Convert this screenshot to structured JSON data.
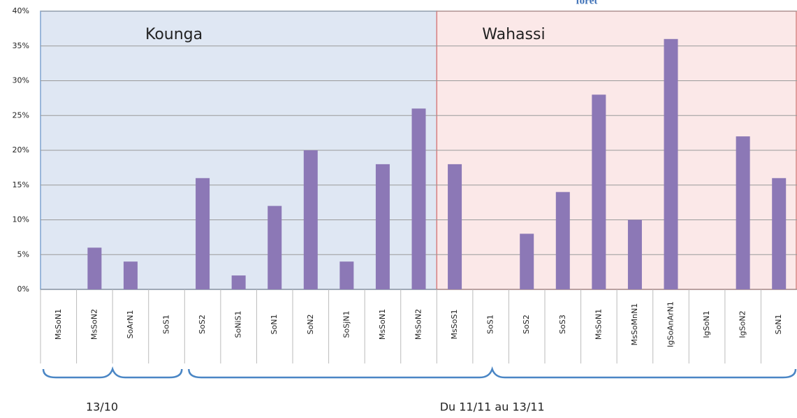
{
  "chart_data": {
    "type": "bar",
    "note_top": "forêt",
    "categories": [
      "MsSoN1",
      "MsSoN2",
      "SoArN1",
      "SoS1",
      "SoS2",
      "SoNiS1",
      "SoN1",
      "SoN2",
      "SoSjN1",
      "MsSoN1",
      "MsSoN2",
      "MsSoS1",
      "SoS1",
      "SoS2",
      "SoS3",
      "MsSoN1",
      "MsSoMnN1",
      "IgSoAnArN1",
      "IgSoN1",
      "IgSoN2",
      "SoN1"
    ],
    "values": [
      0,
      6,
      4,
      0,
      16,
      2,
      12,
      20,
      4,
      18,
      26,
      18,
      0,
      8,
      14,
      28,
      10,
      36,
      0,
      22,
      16
    ],
    "color": "#8c78b6",
    "ylim": [
      0,
      40
    ],
    "yticks": [
      {
        "value": 0,
        "label": "0%"
      },
      {
        "value": 5,
        "label": "5%"
      },
      {
        "value": 10,
        "label": "10%"
      },
      {
        "value": 15,
        "label": "15%"
      },
      {
        "value": 20,
        "label": "20%"
      },
      {
        "value": 25,
        "label": "25%"
      },
      {
        "value": 30,
        "label": "30%"
      },
      {
        "value": 35,
        "label": "35%"
      },
      {
        "value": 40,
        "label": "40%"
      }
    ],
    "grid": true,
    "regions": [
      {
        "name": "Kounga",
        "span": 11,
        "fill": "#dfe7f3",
        "stroke": "#7fa3cf"
      },
      {
        "name": "Wahassi",
        "span": 10,
        "fill": "#fbe8e8",
        "stroke": "#d98080"
      }
    ],
    "periods": [
      {
        "name": "13/10",
        "span": 4
      },
      {
        "name": "Du 11/11 au 13/11",
        "span": 17
      }
    ]
  }
}
